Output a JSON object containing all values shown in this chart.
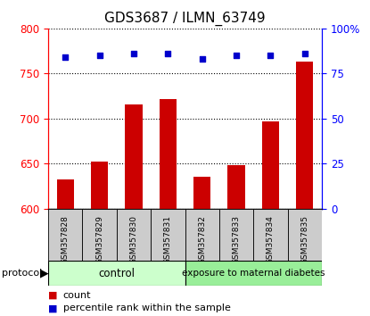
{
  "title": "GDS3687 / ILMN_63749",
  "samples": [
    "GSM357828",
    "GSM357829",
    "GSM357830",
    "GSM357831",
    "GSM357832",
    "GSM357833",
    "GSM357834",
    "GSM357835"
  ],
  "count_values": [
    632,
    652,
    716,
    722,
    635,
    648,
    697,
    763
  ],
  "percentile_values": [
    84,
    85,
    86,
    86,
    83,
    85,
    85,
    86
  ],
  "ylim_left": [
    600,
    800
  ],
  "ylim_right": [
    0,
    100
  ],
  "yticks_left": [
    600,
    650,
    700,
    750,
    800
  ],
  "yticks_right": [
    0,
    25,
    50,
    75,
    100
  ],
  "ytick_labels_right": [
    "0",
    "25",
    "50",
    "75",
    "100%"
  ],
  "bar_color": "#cc0000",
  "dot_color": "#0000cc",
  "control_count": 4,
  "control_label": "control",
  "treatment_label": "exposure to maternal diabetes",
  "control_color": "#ccffcc",
  "treatment_color": "#99ee99",
  "protocol_label": "protocol",
  "legend_count_label": "count",
  "legend_percentile_label": "percentile rank within the sample",
  "bar_width": 0.5,
  "bg_color": "#ffffff",
  "tickbox_color": "#cccccc"
}
